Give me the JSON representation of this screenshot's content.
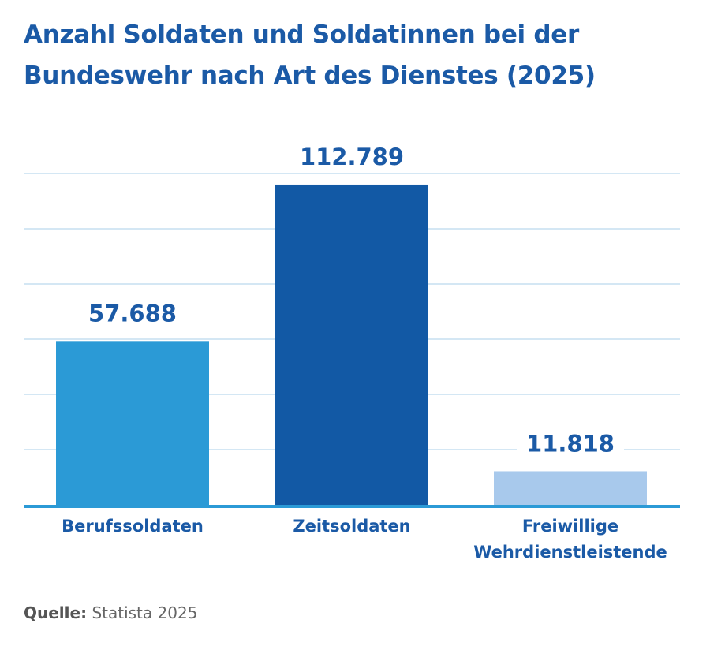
{
  "title": "Anzahl Soldaten und Soldatinnen bei der Bundeswehr nach Art des Dienstes (2025)",
  "source": {
    "label": "Quelle:",
    "text": "Statista 2025"
  },
  "colors": {
    "title": "#1b5aa6",
    "gridline": "#c5dff0",
    "baseline": "#2b9ad6",
    "value_label": "#1b5aa6",
    "category_label": "#1b5aa6"
  },
  "chart_data": {
    "type": "bar",
    "title": "Anzahl Soldaten und Soldatinnen bei der Bundeswehr nach Art des Dienstes (2025)",
    "categories": [
      "Berufssoldaten",
      "Zeitsoldaten",
      "Freiwillige Wehrdienstleistende"
    ],
    "category_lines": [
      [
        "Berufssoldaten"
      ],
      [
        "Zeitsoldaten"
      ],
      [
        "Freiwillige",
        "Wehrdienstleistende"
      ]
    ],
    "values": [
      57688,
      112789,
      11818
    ],
    "value_labels": [
      "57.688",
      "112.789",
      "11.818"
    ],
    "bar_colors": [
      "#2b9ad6",
      "#1259a5",
      "#a8c9ec"
    ],
    "xlabel": "",
    "ylabel": "",
    "ylim": [
      0,
      127500
    ],
    "grid": true,
    "legend": "none"
  }
}
